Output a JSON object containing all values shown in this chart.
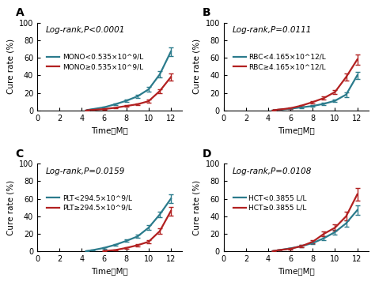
{
  "panels": [
    {
      "label": "A",
      "p_text": "Log-rank,P<0.0001",
      "teal_label": "MONO<0.535×10^9/L",
      "red_label": "MONO≥0.535×10^9/L",
      "teal_x": [
        4.5,
        5,
        6,
        7,
        8,
        9,
        10,
        11,
        12
      ],
      "teal_y": [
        0.5,
        1.5,
        3.5,
        7.0,
        11.0,
        16.0,
        24.0,
        41.0,
        67.0
      ],
      "teal_err": [
        0.3,
        0.5,
        0.7,
        1.0,
        1.3,
        1.8,
        2.5,
        3.5,
        5.0
      ],
      "red_x": [
        4.5,
        5,
        6,
        7,
        8,
        9,
        10,
        11,
        12
      ],
      "red_y": [
        0.2,
        0.6,
        1.5,
        3.0,
        5.0,
        7.0,
        10.5,
        22.0,
        38.0
      ],
      "red_err": [
        0.2,
        0.3,
        0.5,
        0.7,
        0.9,
        1.1,
        1.5,
        2.5,
        4.0
      ]
    },
    {
      "label": "B",
      "p_text": "Log-rank,P=0.0111",
      "teal_label": "RBC<4.165×10^12/L",
      "red_label": "RBC≥4.165×10^12/L",
      "teal_x": [
        4.5,
        5,
        6,
        7,
        8,
        9,
        10,
        11,
        12
      ],
      "teal_y": [
        0.3,
        0.8,
        2.0,
        3.5,
        5.0,
        7.5,
        11.0,
        18.0,
        40.0
      ],
      "teal_err": [
        0.2,
        0.3,
        0.5,
        0.7,
        0.9,
        1.2,
        1.5,
        2.5,
        4.0
      ],
      "red_x": [
        4.5,
        5,
        6,
        7,
        8,
        9,
        10,
        11,
        12
      ],
      "red_y": [
        0.3,
        1.0,
        2.5,
        5.5,
        9.5,
        14.0,
        21.0,
        38.0,
        58.0
      ],
      "red_err": [
        0.2,
        0.3,
        0.6,
        0.9,
        1.3,
        1.8,
        2.5,
        4.0,
        6.0
      ]
    },
    {
      "label": "C",
      "p_text": "Log-rank,P=0.0159",
      "teal_label": "PLT<294.5×10^9/L",
      "red_label": "PLT≥294.5×10^9/L",
      "teal_x": [
        4.5,
        5,
        6,
        7,
        8,
        9,
        10,
        11,
        12
      ],
      "teal_y": [
        0.5,
        1.5,
        4.0,
        7.5,
        12.0,
        17.0,
        27.0,
        42.0,
        60.0
      ],
      "teal_err": [
        0.2,
        0.4,
        0.7,
        1.0,
        1.4,
        1.9,
        2.5,
        3.5,
        5.0
      ],
      "red_x": [
        6,
        7,
        8,
        9,
        10,
        11,
        12
      ],
      "red_y": [
        0.5,
        1.5,
        4.0,
        7.0,
        11.0,
        23.0,
        46.0
      ],
      "red_err": [
        0.3,
        0.5,
        0.8,
        1.3,
        1.8,
        3.0,
        5.0
      ]
    },
    {
      "label": "D",
      "p_text": "Log-rank,P=0.0108",
      "teal_label": "HCT<0.3855 L/L",
      "red_label": "HCT≥0.3855 L/L",
      "teal_x": [
        4.5,
        5,
        6,
        7,
        8,
        9,
        10,
        11,
        12
      ],
      "teal_y": [
        0.5,
        1.5,
        3.5,
        6.0,
        9.5,
        15.0,
        22.0,
        32.0,
        47.0
      ],
      "teal_err": [
        0.2,
        0.4,
        0.7,
        1.0,
        1.4,
        1.9,
        2.5,
        3.5,
        5.0
      ],
      "red_x": [
        4.5,
        5,
        6,
        7,
        8,
        9,
        10,
        11,
        12
      ],
      "red_y": [
        0.5,
        1.5,
        3.0,
        6.0,
        11.0,
        20.0,
        27.0,
        40.0,
        65.0
      ],
      "red_err": [
        0.3,
        0.5,
        0.8,
        1.2,
        1.8,
        2.5,
        3.5,
        5.0,
        7.0
      ]
    }
  ],
  "teal_color": "#2b7b8c",
  "red_color": "#b22020",
  "ylabel": "Cure rate (%)",
  "xlabel": "Time（M）",
  "ylim": [
    0,
    100
  ],
  "xlim": [
    0,
    13
  ],
  "xticks": [
    0,
    2,
    4,
    6,
    8,
    10,
    12
  ],
  "yticks": [
    0,
    20,
    40,
    60,
    80,
    100
  ],
  "bg_color": "#ffffff",
  "linewidth": 1.6,
  "markersize": 0,
  "capsize": 2.5,
  "elinewidth": 1.0,
  "legend_fontsize": 6.5,
  "label_fontsize": 7.5,
  "tick_fontsize": 7,
  "p_fontsize": 7.5,
  "panel_label_fontsize": 10
}
